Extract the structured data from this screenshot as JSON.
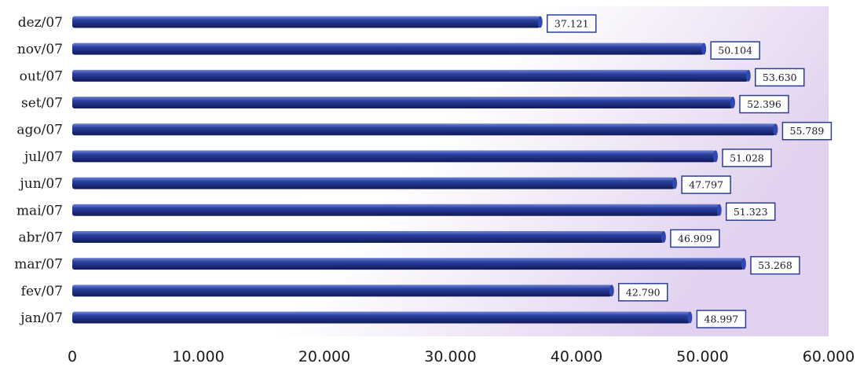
{
  "chart_data": {
    "type": "bar",
    "orientation": "horizontal",
    "categories": [
      "jan/07",
      "fev/07",
      "mar/07",
      "abr/07",
      "mai/07",
      "jun/07",
      "jul/07",
      "ago/07",
      "set/07",
      "out/07",
      "nov/07",
      "dez/07"
    ],
    "values": [
      48997,
      42790,
      53268,
      46909,
      51323,
      47797,
      51028,
      55789,
      52396,
      53630,
      50104,
      37121
    ],
    "data_labels": [
      "48.997",
      "42.790",
      "53.268",
      "46.909",
      "51.323",
      "47.797",
      "51.028",
      "55.789",
      "52.396",
      "53.630",
      "50.104",
      "37.121"
    ],
    "x_ticks": [
      0,
      10000,
      20000,
      30000,
      40000,
      50000,
      60000
    ],
    "x_tick_labels": [
      "0",
      "10.000",
      "20.000",
      "30.000",
      "40.000",
      "50.000",
      "60.000"
    ],
    "xlim": [
      0,
      60000
    ],
    "title": "",
    "xlabel": "",
    "ylabel": "",
    "grid": false,
    "legend": "none",
    "colors": {
      "bar_light": "#6f86d6",
      "bar_mid": "#2a3f9e",
      "bar_dark": "#101a5a",
      "label_border": "#2b3f9a",
      "plot_bg_start": "#ffffff",
      "plot_bg_end": "#e2d2ef"
    }
  }
}
